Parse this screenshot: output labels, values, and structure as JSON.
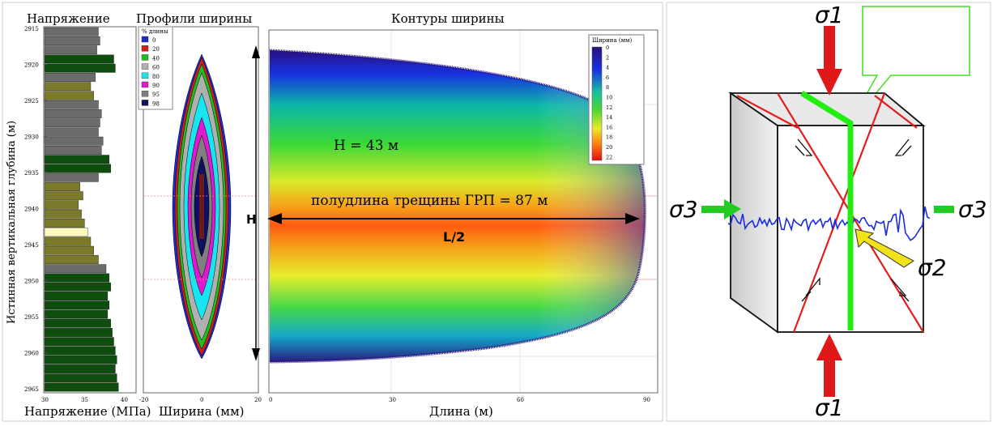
{
  "stress_panel": {
    "title": "Напряжение",
    "xlabel": "Напряжение (МПа)",
    "ylabel": "Истинная вертикальная глубина (м)",
    "x_ticks": [
      "30",
      "35",
      "40"
    ],
    "depth_ticks": [
      "2915",
      "2920",
      "2925",
      "2930",
      "2935",
      "2940",
      "2945",
      "2950",
      "2955",
      "2960",
      "2965"
    ]
  },
  "profile_panel": {
    "title": "Профили ширины",
    "xlabel": "Ширина (мм)",
    "x_ticks": [
      "-20",
      "0",
      "20"
    ],
    "legend_title": "% длины",
    "legend": [
      {
        "label": "0",
        "color": "#1e2bd0"
      },
      {
        "label": "20",
        "color": "#d11f1f"
      },
      {
        "label": "40",
        "color": "#1fbf1f"
      },
      {
        "label": "60",
        "color": "#b0b0b0"
      },
      {
        "label": "80",
        "color": "#19e5f0"
      },
      {
        "label": "90",
        "color": "#e019d0"
      },
      {
        "label": "95",
        "color": "#7f7f7f"
      },
      {
        "label": "98",
        "color": "#101060"
      }
    ],
    "h_label": "H"
  },
  "contour_panel": {
    "title": "Контуры ширины",
    "xlabel": "Длина (м)",
    "x_ticks": [
      "0",
      "30",
      "60",
      "90"
    ],
    "height_text": "H = 43 м",
    "halflength_text": "полудлина трещины ГРП  = 87 м",
    "l2_label": "L/2",
    "colorbar_title": "Ширина (мм)",
    "colorbar_ticks": [
      "0",
      "2",
      "4",
      "6",
      "8",
      "10",
      "12",
      "14",
      "16",
      "18",
      "20",
      "22"
    ]
  },
  "stress_diagram": {
    "sigma1_top": "σ1",
    "sigma1_bottom": "σ1",
    "sigma3_left": "σ3",
    "sigma3_right": "σ3",
    "sigma2": "σ2",
    "colors": {
      "arrow_red": "#e0181a",
      "arrow_green": "#22cc22",
      "fracture": "#22ee11",
      "shear_lines": "#e41c1c",
      "trace": "#1a2be0",
      "arrow_yellow": "#f2e21a"
    }
  }
}
